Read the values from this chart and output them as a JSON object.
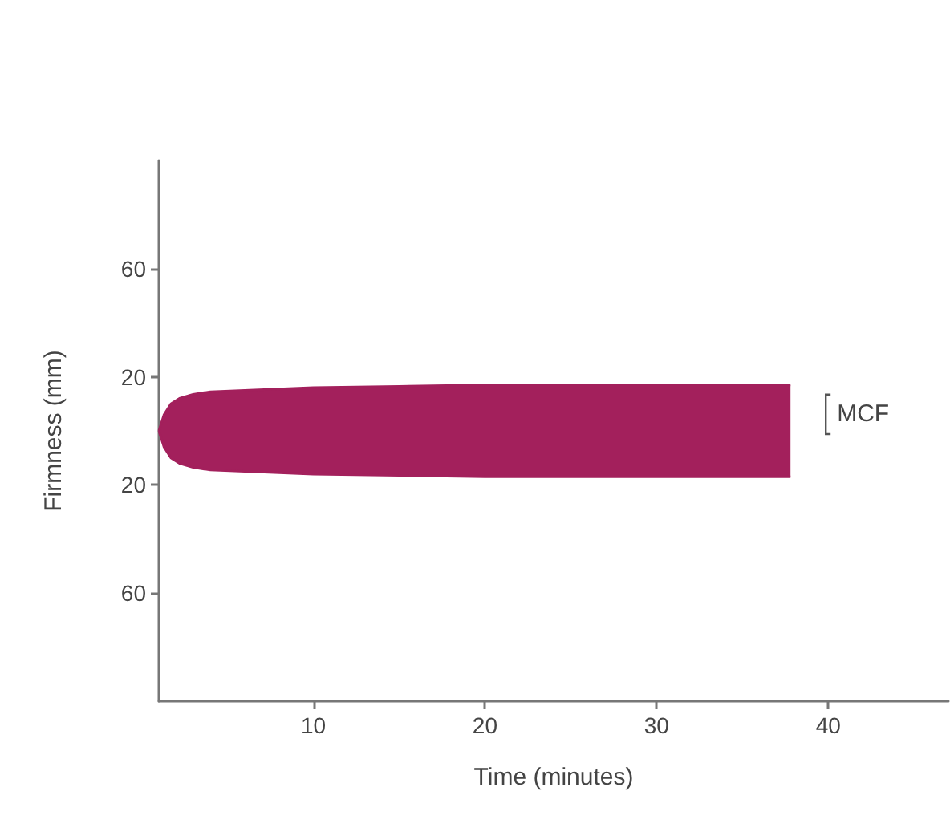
{
  "chart_data": {
    "type": "area",
    "xlabel": "Time (minutes)",
    "ylabel": "Firmness (mm)",
    "annotations": [
      "MCF"
    ],
    "x": [
      1,
      1.3,
      1.7,
      2.2,
      3,
      4,
      6,
      10,
      15,
      20,
      25,
      30,
      35,
      37.8
    ],
    "series": [
      {
        "color": "#a3205c",
        "values": [
          0,
          6,
          10,
          12,
          13.5,
          14.5,
          15,
          16,
          16.5,
          17,
          17,
          17,
          17,
          17
        ]
      },
      {
        "color": "#a3205c",
        "values": [
          0,
          -6,
          -10,
          -12,
          -13.5,
          -14.5,
          -15,
          -16,
          -16.5,
          -17,
          -17,
          -17,
          -17,
          -17
        ]
      }
    ],
    "xlim": [
      1,
      47
    ],
    "xticks": [
      10,
      20,
      30,
      40
    ],
    "ylim": [
      -100,
      100
    ],
    "yticks": [
      60,
      20,
      {
        "value": -20,
        "label": "20"
      },
      {
        "value": -60,
        "label": "60"
      }
    ]
  }
}
